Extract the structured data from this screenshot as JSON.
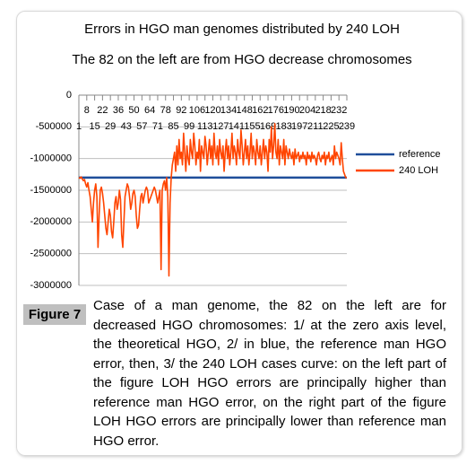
{
  "chart_data": {
    "type": "line",
    "title": "Errors in HGO man genomes distributed by 240 LOH",
    "subtitle": "The 82 on the left are from HGO decrease chromosomes",
    "figure_label": "Figure 7",
    "caption": "Case of a man genome, the 82 on the left are for decreased HGO chromosomes: 1/ at the zero axis level, the theoretical HGO, 2/ in blue, the reference man HGO error, then, 3/ the 240 LOH cases curve: on the left part of the figure LOH HGO errors are principally higher than reference man HGO error, on the right part of the figure LOH HGO errors are principally lower than reference man HGO error.",
    "xlim": [
      1,
      239
    ],
    "xticks": [
      1,
      8,
      15,
      22,
      29,
      36,
      43,
      50,
      57,
      64,
      71,
      78,
      85,
      92,
      99,
      106,
      113,
      120,
      127,
      134,
      141,
      148,
      155,
      162,
      169,
      176,
      183,
      190,
      197,
      204,
      211,
      218,
      225,
      232,
      239
    ],
    "ylim": [
      -3000000,
      0
    ],
    "yticks": [
      0,
      -500000,
      -1000000,
      -1500000,
      -2000000,
      -2500000,
      -3000000
    ],
    "grid": true,
    "legend": "right",
    "x": [
      1,
      2,
      3,
      4,
      5,
      6,
      7,
      8,
      9,
      10,
      11,
      12,
      13,
      14,
      15,
      16,
      17,
      18,
      19,
      20,
      21,
      22,
      23,
      24,
      25,
      26,
      27,
      28,
      29,
      30,
      31,
      32,
      33,
      34,
      35,
      36,
      37,
      38,
      39,
      40,
      41,
      42,
      43,
      44,
      45,
      46,
      47,
      48,
      49,
      50,
      51,
      52,
      53,
      54,
      55,
      56,
      57,
      58,
      59,
      60,
      61,
      62,
      63,
      64,
      65,
      66,
      67,
      68,
      69,
      70,
      71,
      72,
      73,
      74,
      75,
      76,
      77,
      78,
      79,
      80,
      81,
      82,
      83,
      84,
      85,
      86,
      87,
      88,
      89,
      90,
      91,
      92,
      93,
      94,
      95,
      96,
      97,
      98,
      99,
      100,
      101,
      102,
      103,
      104,
      105,
      106,
      107,
      108,
      109,
      110,
      111,
      112,
      113,
      114,
      115,
      116,
      117,
      118,
      119,
      120,
      121,
      122,
      123,
      124,
      125,
      126,
      127,
      128,
      129,
      130,
      131,
      132,
      133,
      134,
      135,
      136,
      137,
      138,
      139,
      140,
      141,
      142,
      143,
      144,
      145,
      146,
      147,
      148,
      149,
      150,
      151,
      152,
      153,
      154,
      155,
      156,
      157,
      158,
      159,
      160,
      161,
      162,
      163,
      164,
      165,
      166,
      167,
      168,
      169,
      170,
      171,
      172,
      173,
      174,
      175,
      176,
      177,
      178,
      179,
      180,
      181,
      182,
      183,
      184,
      185,
      186,
      187,
      188,
      189,
      190,
      191,
      192,
      193,
      194,
      195,
      196,
      197,
      198,
      199,
      200,
      201,
      202,
      203,
      204,
      205,
      206,
      207,
      208,
      209,
      210,
      211,
      212,
      213,
      214,
      215,
      216,
      217,
      218,
      219,
      220,
      221,
      222,
      223,
      224,
      225,
      226,
      227,
      228,
      229,
      230,
      231,
      232,
      233,
      234,
      235,
      236,
      237,
      238,
      239
    ],
    "series": [
      {
        "name": "reference",
        "color": "#1f4e9a",
        "x": [
          1,
          239
        ],
        "values": [
          -1300000,
          -1300000
        ]
      },
      {
        "name": "240 LOH",
        "color": "#ff4500",
        "values": [
          -1300000,
          -1310000,
          -1290000,
          -1320000,
          -1350000,
          -1330000,
          -1400000,
          -1450000,
          -1380000,
          -1500000,
          -1600000,
          -1800000,
          -2000000,
          -1700000,
          -1500000,
          -1400000,
          -1600000,
          -2400000,
          -1900000,
          -1500000,
          -1450000,
          -1550000,
          -1700000,
          -1900000,
          -2100000,
          -2200000,
          -2000000,
          -1800000,
          -1900000,
          -2150000,
          -2250000,
          -2000000,
          -1700000,
          -1600000,
          -1800000,
          -1700000,
          -1500000,
          -1650000,
          -2200000,
          -2400000,
          -2000000,
          -1600000,
          -1500000,
          -1400000,
          -1450000,
          -1600000,
          -1800000,
          -1700000,
          -1550000,
          -1500000,
          -1600000,
          -1900000,
          -2100000,
          -2050000,
          -1800000,
          -1600000,
          -1550000,
          -1700000,
          -1600000,
          -1500000,
          -1450000,
          -1500000,
          -1700000,
          -1650000,
          -1600000,
          -1550000,
          -1500000,
          -1450000,
          -1500000,
          -1600000,
          -1700000,
          -1600000,
          -1500000,
          -2750000,
          -1500000,
          -1400000,
          -1350000,
          -1500000,
          -1300000,
          -1600000,
          -2850000,
          -1700000,
          -1300000,
          -1100000,
          -1000000,
          -900000,
          -1200000,
          -800000,
          -1100000,
          -700000,
          -1000000,
          -900000,
          -1100000,
          -600000,
          -900000,
          -1200000,
          -800000,
          -1000000,
          -1100000,
          -700000,
          -900000,
          -1000000,
          -600000,
          -800000,
          -1100000,
          -900000,
          -1000000,
          -700000,
          -1200000,
          -800000,
          -900000,
          -1000000,
          -650000,
          -800000,
          -1100000,
          -900000,
          -700000,
          -1000000,
          -800000,
          -1100000,
          -600000,
          -900000,
          -1000000,
          -800000,
          -1100000,
          -700000,
          -900000,
          -1000000,
          -800000,
          -1200000,
          -900000,
          -700000,
          -1000000,
          -800000,
          -1100000,
          -900000,
          -600000,
          -1000000,
          -800000,
          -900000,
          -1100000,
          -700000,
          -900000,
          -1000000,
          -550000,
          -800000,
          -1100000,
          -900000,
          -700000,
          -1000000,
          -800000,
          -1100000,
          -900000,
          -600000,
          -1000000,
          -800000,
          -900000,
          -1100000,
          -700000,
          -900000,
          -1000000,
          -800000,
          -1100000,
          -900000,
          -700000,
          -1000000,
          -800000,
          -900000,
          -1200000,
          -700000,
          -900000,
          -500000,
          -1000000,
          -800000,
          -450000,
          -900000,
          -1000000,
          -700000,
          -1100000,
          -800000,
          -900000,
          -1000000,
          -700000,
          -1100000,
          -800000,
          -900000,
          -1000000,
          -850000,
          -950000,
          -1000000,
          -900000,
          -1100000,
          -850000,
          -1000000,
          -950000,
          -900000,
          -1050000,
          -950000,
          -1000000,
          -900000,
          -1000000,
          -950000,
          -1100000,
          -900000,
          -1000000,
          -950000,
          -1050000,
          -900000,
          -1000000,
          -950000,
          -1000000,
          -1100000,
          -950000,
          -900000,
          -1000000,
          -1050000,
          -950000,
          -1000000,
          -900000,
          -1100000,
          -950000,
          -1000000,
          -900000,
          -1050000,
          -1000000,
          -950000,
          -1100000,
          -800000,
          -1000000,
          -900000,
          -950000,
          -1000000,
          -1100000,
          -750000,
          -1000000,
          -1200000,
          -1250000,
          -1300000,
          -1300000
        ]
      }
    ]
  }
}
